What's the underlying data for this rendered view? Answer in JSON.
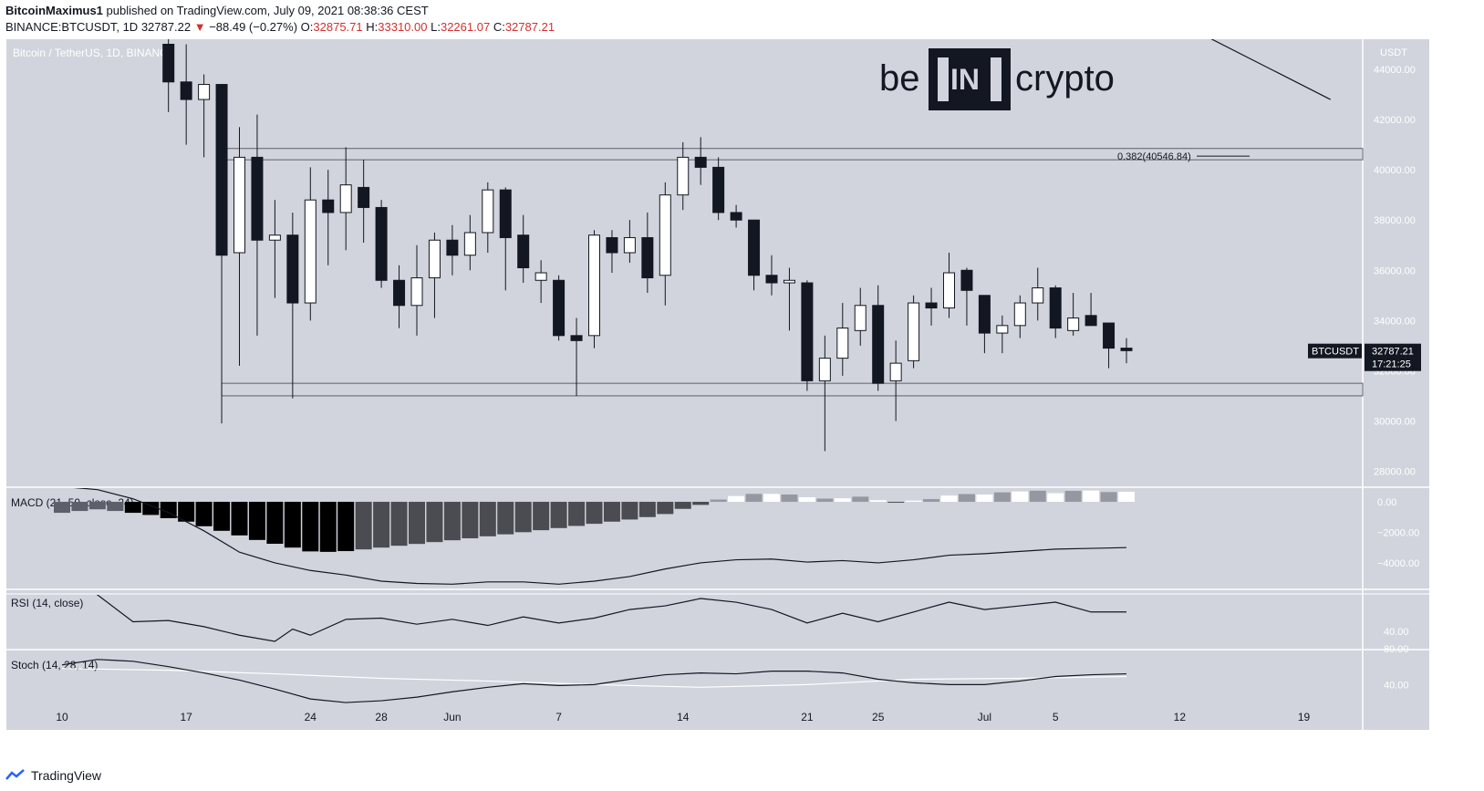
{
  "header": {
    "author": "BitcoinMaximus1",
    "published_text": "published on TradingView.com, July 09, 2021 08:38:36 CEST",
    "symbol": "BINANCE:BTCUSDT, 1D",
    "last": "32787.22",
    "change": "−88.49 (−0.27%)",
    "o_label": "O:",
    "o_value": "32875.71",
    "h_label": "H:",
    "h_value": "33310.00",
    "l_label": "L:",
    "l_value": "32261.07",
    "c_label": "C:",
    "c_value": "32787.21"
  },
  "logo": {
    "pre": "be",
    "mid": "IN",
    "post": "crypto"
  },
  "footer": {
    "brand": "TradingView"
  },
  "colors": {
    "bg": "#d1d4dc",
    "bull": "#ffffff",
    "bear": "#131722",
    "line": "#131722",
    "macd_light": "#9598a1",
    "macd_dark": "#4a4c52",
    "red": "#d32f2f"
  },
  "chart_data": {
    "type": "candlestick",
    "title": "Bitcoin / TetherUS, 1D, BINANCE",
    "currency": "USDT",
    "price_ticks": [
      "44000.00",
      "42000.00",
      "40000.00",
      "38000.00",
      "36000.00",
      "34000.00",
      "32000.00",
      "30000.00",
      "28000.00"
    ],
    "price_range": [
      27400,
      45200
    ],
    "x_ticks": [
      {
        "day": 0,
        "label": "10"
      },
      {
        "day": 7,
        "label": "17"
      },
      {
        "day": 14,
        "label": "24"
      },
      {
        "day": 18,
        "label": "28"
      },
      {
        "day": 22,
        "label": "Jun"
      },
      {
        "day": 28,
        "label": "7"
      },
      {
        "day": 35,
        "label": "14"
      },
      {
        "day": 42,
        "label": "21"
      },
      {
        "day": 46,
        "label": "25"
      },
      {
        "day": 52,
        "label": "Jul"
      },
      {
        "day": 56,
        "label": "5"
      },
      {
        "day": 63,
        "label": "12"
      },
      {
        "day": 70,
        "label": "19"
      }
    ],
    "candles": [
      [
        6,
        45000,
        46500,
        42300,
        43500
      ],
      [
        7,
        43500,
        45000,
        41000,
        42800
      ],
      [
        8,
        42800,
        43800,
        40500,
        43400
      ],
      [
        9,
        43400,
        43400,
        29900,
        36600
      ],
      [
        10,
        36700,
        41700,
        32200,
        40500
      ],
      [
        11,
        40500,
        42200,
        33400,
        37200
      ],
      [
        12,
        37200,
        38800,
        34900,
        37400
      ],
      [
        13,
        37400,
        38300,
        30900,
        34700
      ],
      [
        14,
        34700,
        40100,
        34000,
        38800
      ],
      [
        15,
        38800,
        40000,
        36200,
        38300
      ],
      [
        16,
        38300,
        40900,
        36800,
        39400
      ],
      [
        17,
        39300,
        40400,
        37100,
        38500
      ],
      [
        18,
        38500,
        38800,
        35300,
        35600
      ],
      [
        19,
        35600,
        36200,
        33700,
        34600
      ],
      [
        20,
        34600,
        37000,
        33400,
        35700
      ],
      [
        21,
        35700,
        37500,
        34100,
        37200
      ],
      [
        22,
        37200,
        37800,
        35800,
        36600
      ],
      [
        23,
        36600,
        38200,
        36000,
        37500
      ],
      [
        24,
        37500,
        39500,
        36700,
        39200
      ],
      [
        25,
        39200,
        39300,
        35200,
        37300
      ],
      [
        26,
        37400,
        38200,
        35500,
        36100
      ],
      [
        27,
        35600,
        36400,
        34700,
        35900
      ],
      [
        28,
        35600,
        35800,
        33200,
        33400
      ],
      [
        29,
        33400,
        34100,
        31000,
        33200
      ],
      [
        30,
        33400,
        37600,
        32900,
        37400
      ],
      [
        31,
        37300,
        37600,
        35900,
        36700
      ],
      [
        32,
        36700,
        38000,
        36300,
        37300
      ],
      [
        33,
        37300,
        38300,
        35100,
        35700
      ],
      [
        34,
        35800,
        39500,
        34600,
        39000
      ],
      [
        35,
        39000,
        41100,
        38400,
        40500
      ],
      [
        36,
        40500,
        41300,
        39400,
        40100
      ],
      [
        37,
        40100,
        40500,
        38000,
        38300
      ],
      [
        38,
        38300,
        38600,
        37700,
        38000
      ],
      [
        39,
        38000,
        38000,
        35200,
        35800
      ],
      [
        40,
        35800,
        36600,
        35000,
        35500
      ],
      [
        41,
        35500,
        36100,
        33600,
        35600
      ],
      [
        42,
        35500,
        35600,
        31200,
        31600
      ],
      [
        43,
        31600,
        33400,
        28800,
        32500
      ],
      [
        44,
        32500,
        34700,
        31800,
        33700
      ],
      [
        45,
        33600,
        35300,
        33000,
        34600
      ],
      [
        46,
        34600,
        35400,
        31200,
        31500
      ],
      [
        47,
        31600,
        33200,
        30000,
        32300
      ],
      [
        48,
        32400,
        35000,
        32100,
        34700
      ],
      [
        49,
        34700,
        35300,
        33800,
        34500
      ],
      [
        50,
        34500,
        36700,
        34100,
        35900
      ],
      [
        51,
        36000,
        36100,
        33800,
        35200
      ],
      [
        52,
        35000,
        35000,
        32700,
        33500
      ],
      [
        53,
        33500,
        34200,
        32700,
        33800
      ],
      [
        54,
        33800,
        35000,
        33300,
        34700
      ],
      [
        55,
        34700,
        36100,
        34000,
        35300
      ],
      [
        56,
        35300,
        35400,
        33300,
        33700
      ],
      [
        57,
        33600,
        35100,
        33400,
        34100
      ],
      [
        58,
        34200,
        35100,
        33800,
        33800
      ],
      [
        59,
        33900,
        33900,
        32100,
        32900
      ],
      [
        60,
        32900,
        33300,
        32300,
        32800
      ]
    ],
    "resistance_line": [
      {
        "day": 59.8,
        "price": 47000
      },
      {
        "day": 71.5,
        "price": 42800
      }
    ],
    "support_range": [
      31000,
      31500
    ],
    "fib_level": {
      "label": "0.382(40546.84)",
      "range": [
        40400,
        40850
      ]
    },
    "last_price_label": {
      "symbol": "BTCUSDT",
      "price": "32787.21",
      "countdown": "17:21:25"
    },
    "macd": {
      "title": "MACD (21, 50, close, 24)",
      "ticks": [
        "0.00",
        "−2000.00",
        "−4000.00"
      ],
      "range": [
        -5500,
        900
      ],
      "hist": [
        -720,
        -600,
        -490,
        -600,
        -720,
        -860,
        -1070,
        -1300,
        -1600,
        -1900,
        -2200,
        -2500,
        -2750,
        -3000,
        -3250,
        -3280,
        -3230,
        -3120,
        -3000,
        -2880,
        -2760,
        -2640,
        -2520,
        -2390,
        -2260,
        -2130,
        -1990,
        -1860,
        -1720,
        -1580,
        -1440,
        -1300,
        -1160,
        -1000,
        -800,
        -460,
        -200,
        150,
        380,
        520,
        520,
        480,
        300,
        210,
        230,
        340,
        110,
        -60,
        80,
        180,
        410,
        510,
        480,
        620,
        680,
        730,
        570,
        720,
        740,
        640,
        660
      ],
      "line_x": [
        0,
        2,
        4,
        6,
        8,
        10,
        12,
        14,
        16,
        18,
        20,
        22,
        24,
        26,
        28,
        30,
        32,
        34,
        36,
        38,
        40,
        42,
        44,
        46,
        48,
        50,
        52,
        54,
        56,
        58,
        60
      ],
      "line_y": [
        1000,
        800,
        200,
        -700,
        -1900,
        -3300,
        -4000,
        -4500,
        -4800,
        -5200,
        -5350,
        -5400,
        -5250,
        -5250,
        -5400,
        -5200,
        -4900,
        -4400,
        -4000,
        -3800,
        -3750,
        -3950,
        -3850,
        -4000,
        -3800,
        -3500,
        -3400,
        -3250,
        -3100,
        -3050,
        -3000
      ]
    },
    "rsi": {
      "title": "RSI (14, close)",
      "ticks": [
        "40.00"
      ],
      "range": [
        26,
        70
      ],
      "x": [
        0,
        2,
        4,
        6,
        8,
        10,
        12,
        13,
        14,
        16,
        18,
        20,
        22,
        24,
        26,
        28,
        30,
        32,
        34,
        36,
        38,
        40,
        42,
        44,
        46,
        48,
        50,
        52,
        54,
        56,
        58,
        60
      ],
      "y": [
        85,
        70,
        48,
        49,
        44,
        37,
        32,
        42,
        37,
        50,
        51,
        46,
        50,
        45,
        52,
        47,
        51,
        58,
        61,
        67,
        64,
        58,
        47,
        55,
        48,
        56,
        64,
        58,
        61,
        64,
        56,
        56
      ]
    },
    "stoch": {
      "title": "Stoch (14, 28, 14)",
      "ticks": [
        "80.00",
        "40.00"
      ],
      "range": [
        17,
        78
      ],
      "k_x": [
        0,
        2,
        4,
        6,
        8,
        10,
        12,
        14,
        16,
        18,
        20,
        22,
        24,
        26,
        28,
        30,
        32,
        34,
        36,
        38,
        40,
        42,
        44,
        46,
        48,
        50,
        52,
        54,
        56,
        58,
        60
      ],
      "k_y": [
        62,
        68,
        66,
        60,
        53,
        45,
        35,
        24,
        20,
        22,
        26,
        32,
        37,
        41,
        39,
        40,
        46,
        51,
        53,
        52,
        55,
        55,
        53,
        46,
        42,
        40,
        40,
        44,
        49,
        51,
        52
      ],
      "d_x": [
        0,
        6,
        12,
        18,
        24,
        30,
        36,
        42,
        48,
        54,
        60
      ],
      "d_y": [
        58,
        56,
        52,
        47,
        44,
        40,
        37,
        40,
        46,
        47,
        49
      ]
    }
  }
}
